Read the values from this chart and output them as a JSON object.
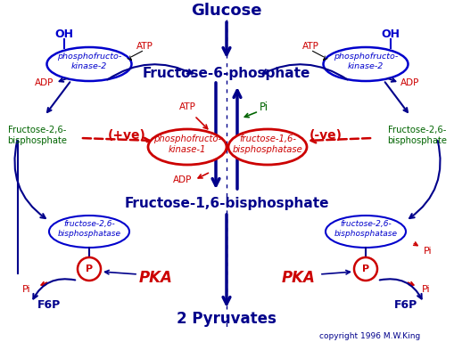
{
  "title_text": "Glucose",
  "f6p_text": "Fructose-6-phosphate",
  "f16bp_text": "Fructose-1,6-bisphosphate",
  "pyruvate_text": "2 Pyruvates",
  "copyright_text": "copyright 1996 M.W.King",
  "left_oh": "OH",
  "right_oh": "OH",
  "left_atp1": "ATP",
  "right_atp1": "ATP",
  "left_adp1": "ADP",
  "right_adp1": "ADP",
  "left_atp2": "ATP",
  "pi_center": "Pi",
  "left_adp2": "ADP",
  "left_f26bp_top": "Fructose-2,6-\nbisphosphate",
  "right_f26bp_top": "Fructose-2,6-\nbisphosphate",
  "left_f26bp_bot": "fructose-2,6-\nbisphosphatase",
  "right_f26bp_bot": "fructose-2,6-\nbisphosphatase",
  "pve_text": "(+ve)",
  "mve_text": "(-ve)",
  "pfk1_text": "phosphofructo-\nkinase-1",
  "fbpase_text": "fructose-1,6-\nbisphosphatase",
  "left_pfk2_text": "phosphofructo-\nkinase-2",
  "right_pfk2_text": "phosphofructo-\nkinase-2",
  "pka_left": "PKA",
  "pka_right": "PKA",
  "p_left": "P",
  "p_right": "P",
  "f6p_left": "F6P",
  "f6p_right": "F6P",
  "pi_left": "Pi",
  "pi_right": "Pi"
}
